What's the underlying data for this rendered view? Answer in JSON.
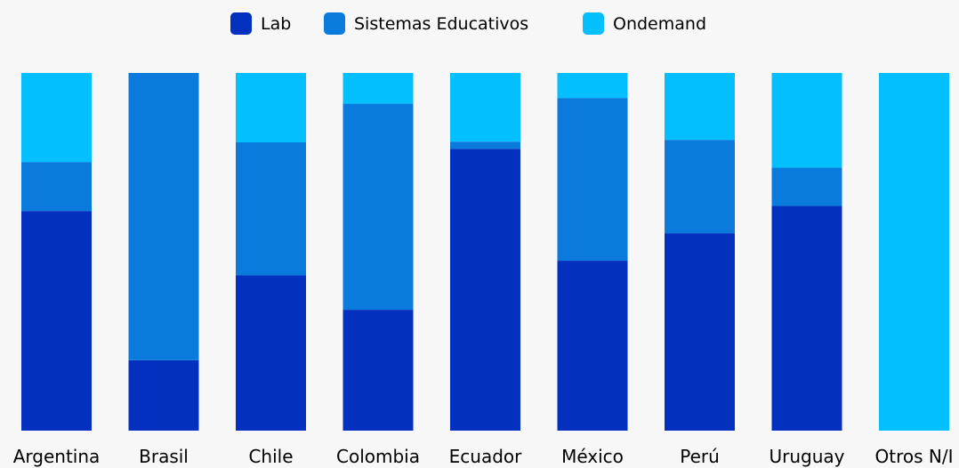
{
  "chart_data": {
    "type": "bar",
    "stacked": true,
    "percent_stacked": true,
    "categories": [
      "Argentina",
      "Brasil",
      "Chile",
      "Colombia",
      "Ecuador",
      "México",
      "Perú",
      "Uruguay",
      "Otros N/I"
    ],
    "series": [
      {
        "name": "Lab",
        "color": "#0330BF",
        "values": [
          61.4,
          19.7,
          43.4,
          33.8,
          78.8,
          47.5,
          55.2,
          62.8,
          0
        ]
      },
      {
        "name": "Sistemas Educativos",
        "color": "#0A7BDD",
        "values": [
          13.7,
          80.3,
          37.2,
          57.6,
          2.0,
          45.5,
          26.1,
          10.7,
          0
        ]
      },
      {
        "name": "Ondemand",
        "color": "#04BFFE",
        "values": [
          24.9,
          0,
          19.4,
          8.6,
          19.2,
          7.0,
          18.7,
          26.5,
          100
        ]
      }
    ],
    "ylim": [
      0,
      100
    ],
    "grid": false,
    "legend_position": "top-center",
    "title": "",
    "xlabel": "",
    "ylabel": ""
  }
}
